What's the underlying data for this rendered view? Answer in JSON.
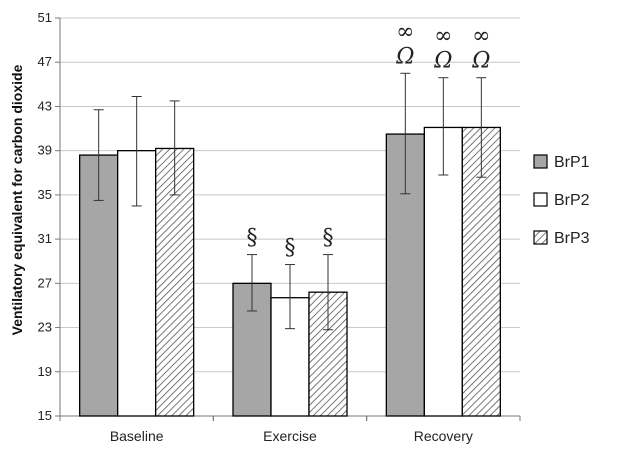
{
  "chart_data": {
    "type": "bar",
    "title": "",
    "xlabel": "",
    "ylabel": "Ventilatory equivalent for carbon dioxide",
    "ylim": [
      15,
      51
    ],
    "yticks": [
      15,
      19,
      23,
      27,
      31,
      35,
      39,
      43,
      47,
      51
    ],
    "grid": "horizontal",
    "legend_position": "right",
    "categories": [
      "Baseline",
      "Exercise",
      "Recovery"
    ],
    "series": [
      {
        "name": "BrP1",
        "fill": "solid-gray",
        "color": "#a6a6a6",
        "values": [
          38.6,
          27.0,
          40.5
        ],
        "error_low": [
          34.5,
          24.5,
          35.1
        ],
        "error_high": [
          42.7,
          29.6,
          46.0
        ]
      },
      {
        "name": "BrP2",
        "fill": "white",
        "color": "#ffffff",
        "values": [
          39.0,
          25.7,
          41.1
        ],
        "error_low": [
          34.0,
          22.9,
          36.8
        ],
        "error_high": [
          43.9,
          28.7,
          45.6
        ]
      },
      {
        "name": "BrP3",
        "fill": "diagonal-hatch",
        "color": "#8c8c8c",
        "values": [
          39.2,
          26.2,
          41.1
        ],
        "error_low": [
          35.0,
          22.8,
          36.6
        ],
        "error_high": [
          43.5,
          29.6,
          45.6
        ]
      }
    ],
    "annotations": [
      {
        "category": "Exercise",
        "series": "BrP1",
        "lines": [
          "§"
        ]
      },
      {
        "category": "Exercise",
        "series": "BrP2",
        "lines": [
          "§"
        ]
      },
      {
        "category": "Exercise",
        "series": "BrP3",
        "lines": [
          "§"
        ]
      },
      {
        "category": "Recovery",
        "series": "BrP1",
        "lines": [
          "∞",
          "Ω"
        ]
      },
      {
        "category": "Recovery",
        "series": "BrP2",
        "lines": [
          "∞",
          "Ω"
        ]
      },
      {
        "category": "Recovery",
        "series": "BrP3",
        "lines": [
          "∞",
          "Ω"
        ]
      }
    ]
  }
}
